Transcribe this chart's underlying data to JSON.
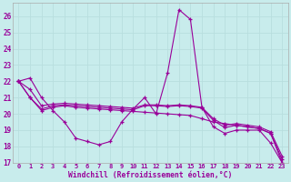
{
  "xlabel": "Windchill (Refroidissement éolien,°C)",
  "bg_color": "#c8ecec",
  "line_color": "#990099",
  "grid_color": "#b8dede",
  "xlim": [
    -0.5,
    23.5
  ],
  "ylim": [
    17,
    26.8
  ],
  "xticks": [
    0,
    1,
    2,
    3,
    4,
    5,
    6,
    7,
    8,
    9,
    10,
    11,
    12,
    13,
    14,
    15,
    16,
    17,
    18,
    19,
    20,
    21,
    22,
    23
  ],
  "yticks": [
    17,
    18,
    19,
    20,
    21,
    22,
    23,
    24,
    25,
    26
  ],
  "series": [
    [
      22.0,
      22.2,
      21.0,
      20.2,
      19.5,
      18.5,
      18.3,
      18.1,
      18.3,
      19.5,
      20.3,
      21.0,
      20.0,
      22.5,
      26.4,
      25.8,
      20.4,
      19.2,
      18.8,
      19.0,
      19.0,
      19.0,
      18.2,
      17.0
    ],
    [
      22.0,
      21.0,
      20.2,
      20.4,
      20.5,
      20.4,
      20.35,
      20.3,
      20.25,
      20.2,
      20.15,
      20.1,
      20.05,
      20.0,
      19.95,
      19.9,
      19.7,
      19.5,
      19.4,
      19.3,
      19.2,
      19.1,
      18.8,
      17.0
    ],
    [
      22.0,
      21.0,
      20.3,
      20.5,
      20.55,
      20.5,
      20.45,
      20.4,
      20.35,
      20.3,
      20.25,
      20.5,
      20.5,
      20.45,
      20.5,
      20.45,
      20.35,
      19.6,
      19.15,
      19.3,
      19.2,
      19.1,
      18.8,
      17.2
    ],
    [
      22.0,
      21.5,
      20.5,
      20.6,
      20.65,
      20.6,
      20.55,
      20.5,
      20.45,
      20.4,
      20.35,
      20.55,
      20.55,
      20.5,
      20.55,
      20.5,
      20.4,
      19.7,
      19.3,
      19.4,
      19.3,
      19.2,
      18.9,
      17.4
    ]
  ]
}
